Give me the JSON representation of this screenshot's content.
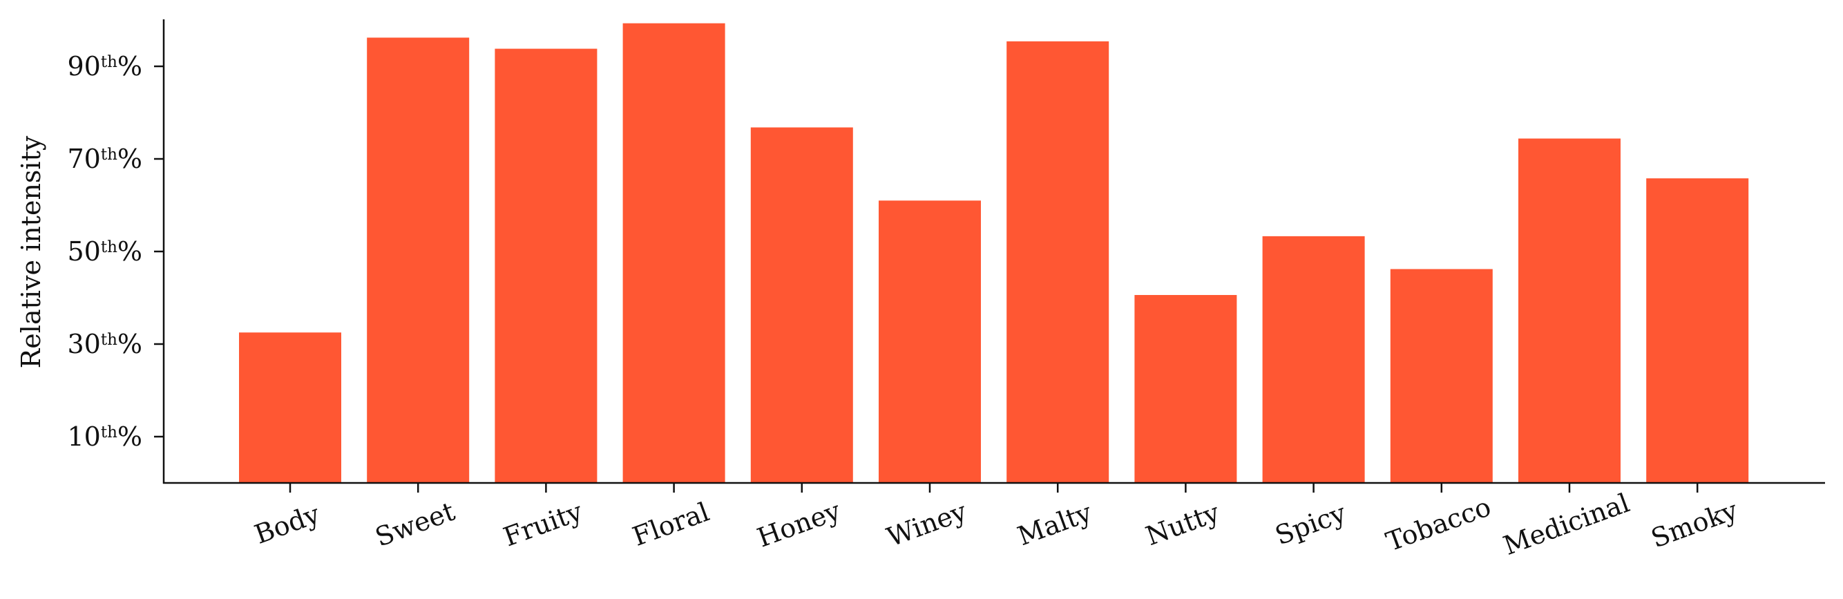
{
  "chart_data": {
    "type": "bar",
    "title": "",
    "xlabel": "",
    "ylabel": "Relative intensity",
    "categories": [
      "Body",
      "Sweet",
      "Fruity",
      "Floral",
      "Honey",
      "Winey",
      "Malty",
      "Nutty",
      "Spicy",
      "Tobacco",
      "Medicinal",
      "Smoky"
    ],
    "values": [
      32.5,
      96.2,
      93.8,
      99.3,
      76.8,
      61.0,
      95.4,
      40.6,
      53.3,
      46.2,
      74.4,
      65.8
    ],
    "ylim": [
      0,
      100
    ],
    "yticks": [
      {
        "value": 10,
        "num": "10",
        "sup": "th",
        "unit": "%"
      },
      {
        "value": 30,
        "num": "30",
        "sup": "th",
        "unit": "%"
      },
      {
        "value": 50,
        "num": "50",
        "sup": "th",
        "unit": "%"
      },
      {
        "value": 70,
        "num": "70",
        "sup": "th",
        "unit": "%"
      },
      {
        "value": 90,
        "num": "90",
        "sup": "th",
        "unit": "%"
      }
    ],
    "bar_color": "#ff5733",
    "grid": false,
    "legend": "none"
  }
}
